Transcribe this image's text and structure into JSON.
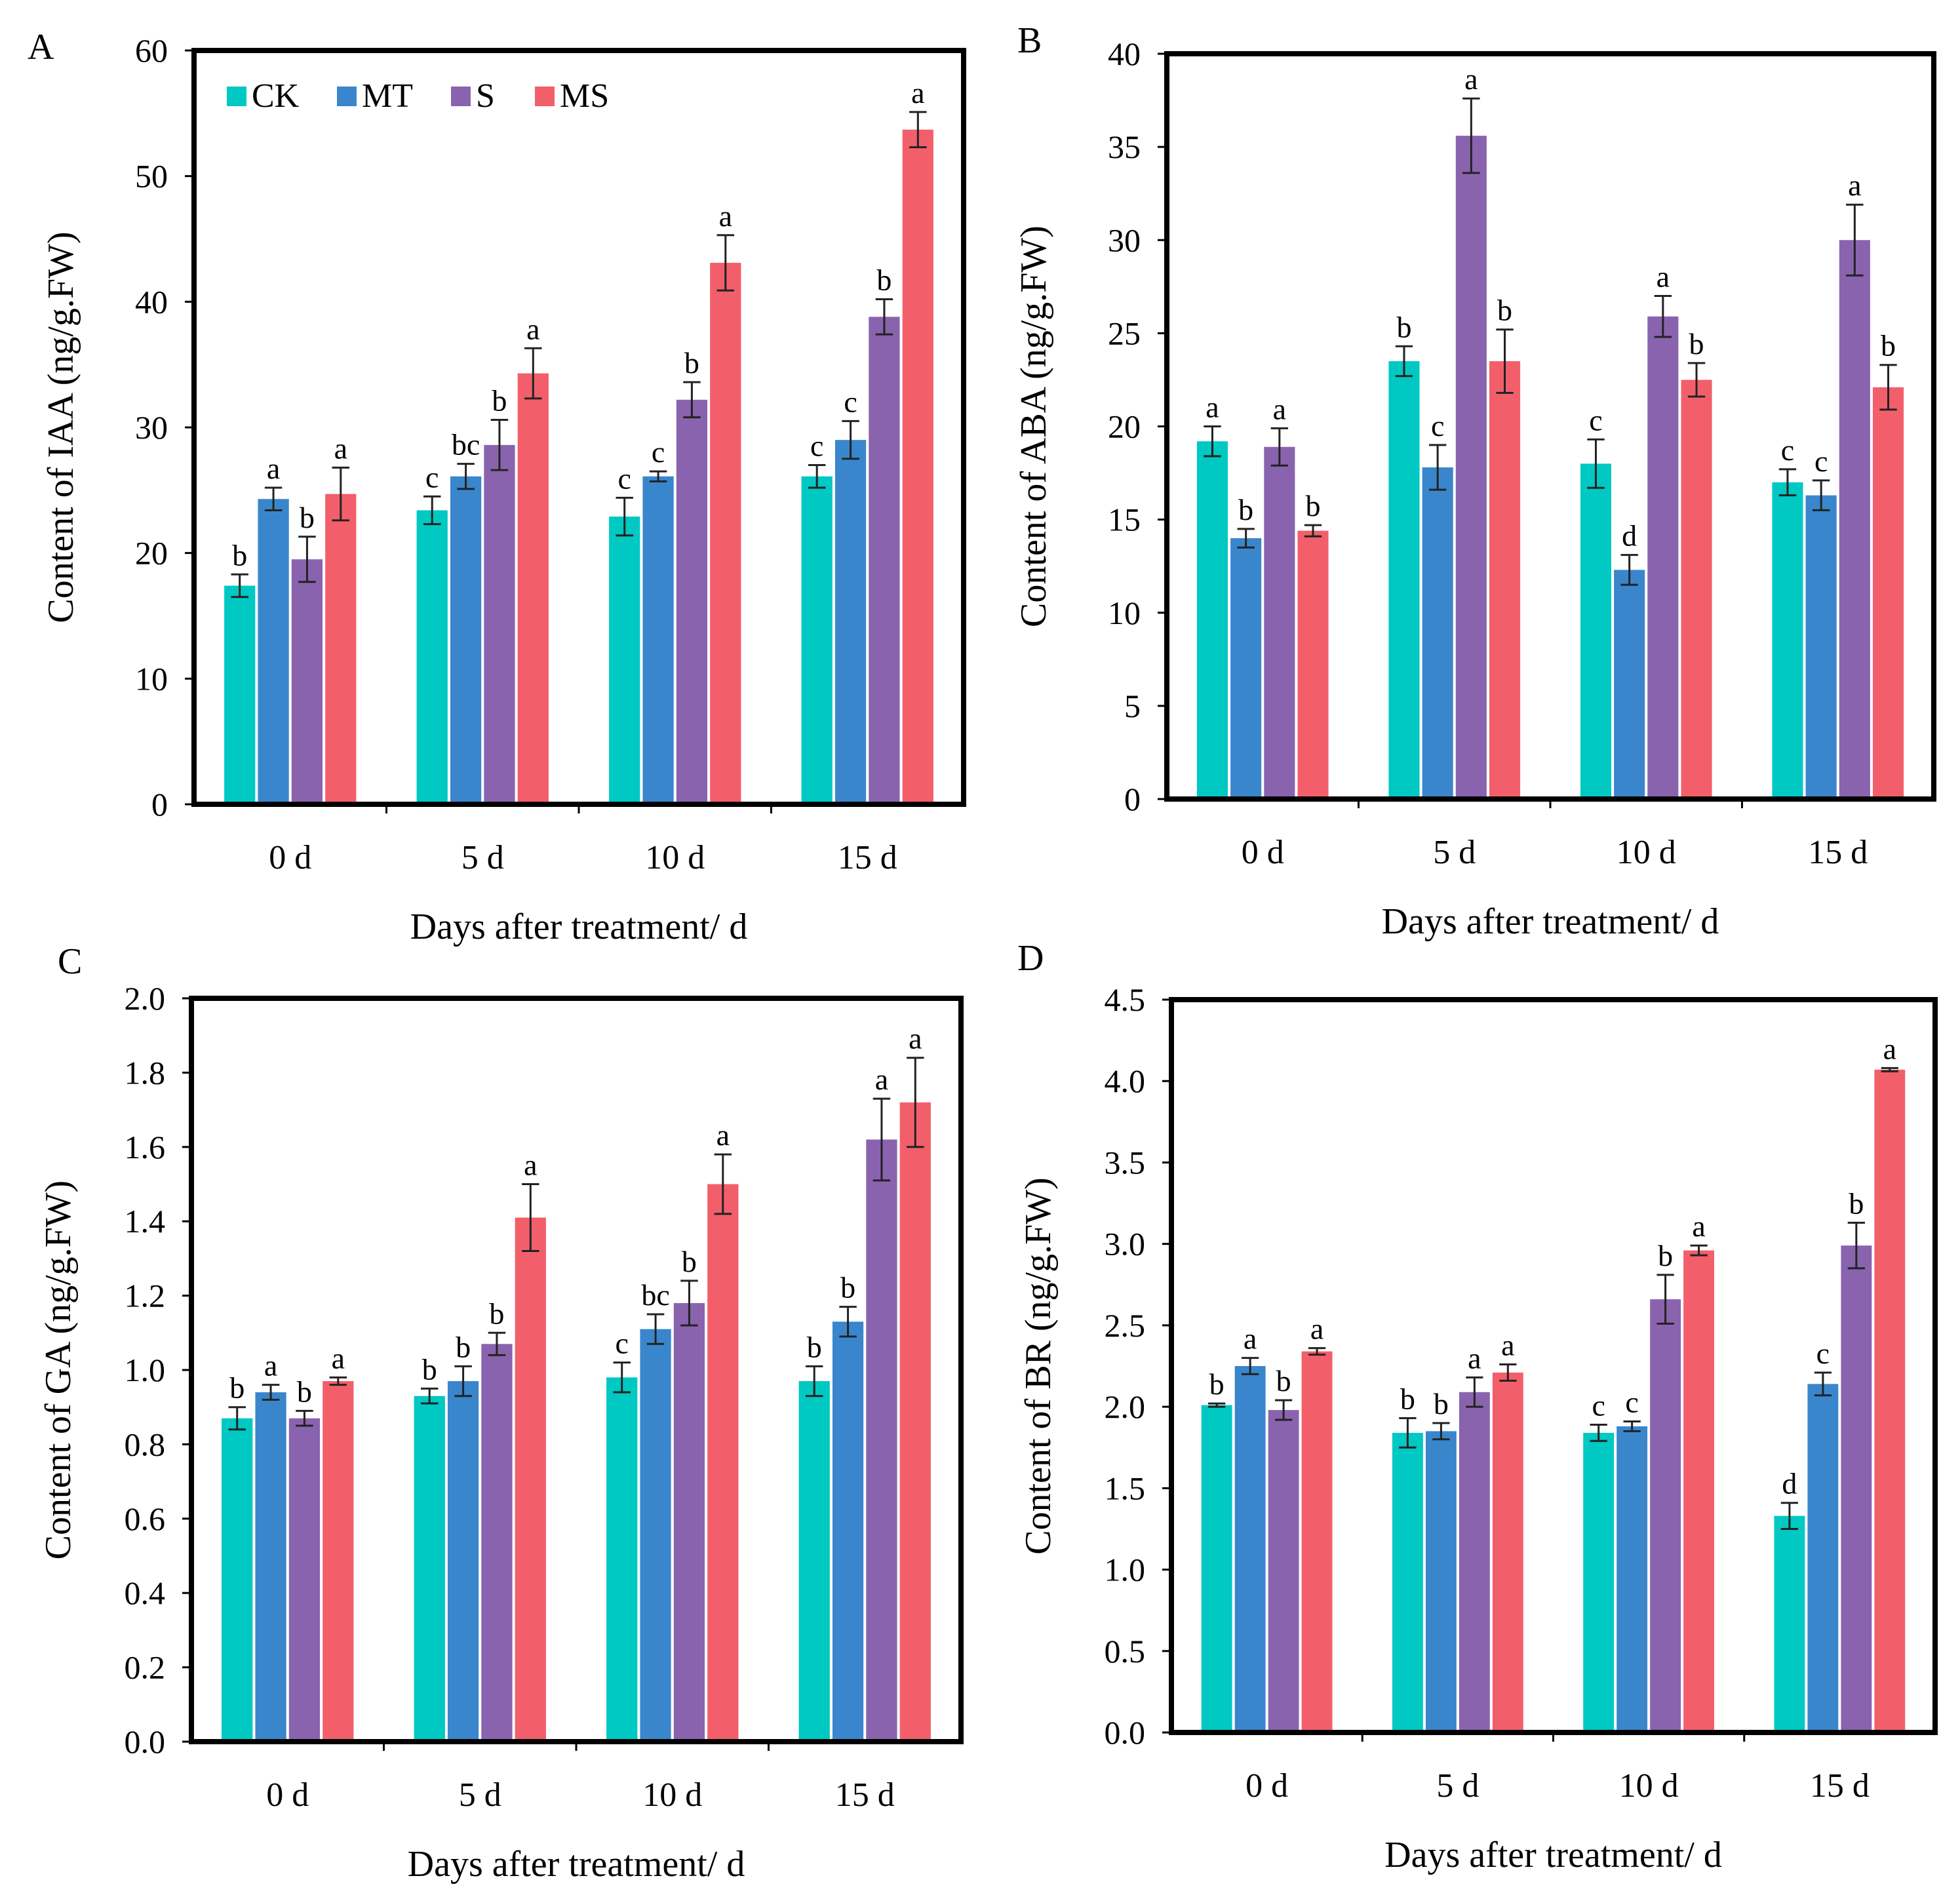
{
  "colors": {
    "CK": "#00C8C3",
    "MT": "#3A86CC",
    "S": "#8A63AE",
    "MS": "#F25F6B",
    "axis": "#000000",
    "error_bar": "#222222"
  },
  "legend": [
    {
      "key": "CK",
      "label": "CK"
    },
    {
      "key": "MT",
      "label": "MT"
    },
    {
      "key": "S",
      "label": "S"
    },
    {
      "key": "MS",
      "label": "MS"
    }
  ],
  "chart_data": [
    {
      "panel": "A",
      "type": "bar",
      "xlabel": "Days after treatment/ d",
      "ylabel": "Content of IAA (ng/g.FW)",
      "categories": [
        "0 d",
        "5 d",
        "10 d",
        "15 d"
      ],
      "ylim": [
        0,
        60
      ],
      "yticks": [
        0,
        10,
        20,
        30,
        40,
        50,
        60
      ],
      "tick_decimals": 0,
      "show_legend": true,
      "legend_position": "top-left",
      "series": [
        {
          "name": "CK",
          "values": [
            17.4,
            23.4,
            22.9,
            26.1
          ],
          "errors": [
            0.9,
            1.1,
            1.5,
            0.9
          ],
          "letters": [
            "b",
            "c",
            "c",
            "c"
          ]
        },
        {
          "name": "MT",
          "values": [
            24.3,
            26.1,
            26.1,
            29.0
          ],
          "errors": [
            0.9,
            1.0,
            0.4,
            1.5
          ],
          "letters": [
            "a",
            "bc",
            "c",
            "c"
          ]
        },
        {
          "name": "S",
          "values": [
            19.5,
            28.6,
            32.2,
            38.8
          ],
          "errors": [
            1.8,
            2.0,
            1.4,
            1.4
          ],
          "letters": [
            "b",
            "b",
            "b",
            "b"
          ]
        },
        {
          "name": "MS",
          "values": [
            24.7,
            34.3,
            43.1,
            53.7
          ],
          "errors": [
            2.1,
            2.0,
            2.2,
            1.4
          ],
          "letters": [
            "a",
            "a",
            "a",
            "a"
          ]
        }
      ]
    },
    {
      "panel": "B",
      "type": "bar",
      "xlabel": "Days after treatment/ d",
      "ylabel": "Content of ABA (ng/g.FW)",
      "categories": [
        "0 d",
        "5 d",
        "10 d",
        "15 d"
      ],
      "ylim": [
        0,
        40
      ],
      "yticks": [
        0,
        5,
        10,
        15,
        20,
        25,
        30,
        35,
        40
      ],
      "tick_decimals": 0,
      "show_legend": false,
      "series": [
        {
          "name": "CK",
          "values": [
            19.2,
            23.5,
            18.0,
            17.0
          ],
          "errors": [
            0.8,
            0.8,
            1.3,
            0.7
          ],
          "letters": [
            "a",
            "b",
            "c",
            "c"
          ]
        },
        {
          "name": "MT",
          "values": [
            14.0,
            17.8,
            12.3,
            16.3
          ],
          "errors": [
            0.5,
            1.2,
            0.8,
            0.8
          ],
          "letters": [
            "b",
            "c",
            "d",
            "c"
          ]
        },
        {
          "name": "S",
          "values": [
            18.9,
            35.6,
            25.9,
            30.0
          ],
          "errors": [
            1.0,
            2.0,
            1.1,
            1.9
          ],
          "letters": [
            "a",
            "a",
            "a",
            "a"
          ]
        },
        {
          "name": "MS",
          "values": [
            14.4,
            23.5,
            22.5,
            22.1
          ],
          "errors": [
            0.3,
            1.7,
            0.9,
            1.2
          ],
          "letters": [
            "b",
            "b",
            "b",
            "b"
          ]
        }
      ]
    },
    {
      "panel": "C",
      "type": "bar",
      "xlabel": "Days after treatment/ d",
      "ylabel": "Content of GA (ng/g.FW)",
      "categories": [
        "0 d",
        "5 d",
        "10 d",
        "15 d"
      ],
      "ylim": [
        0,
        2.0
      ],
      "yticks": [
        0.0,
        0.2,
        0.4,
        0.6,
        0.8,
        1.0,
        1.2,
        1.4,
        1.6,
        1.8,
        2.0
      ],
      "tick_decimals": 1,
      "show_legend": false,
      "series": [
        {
          "name": "CK",
          "values": [
            0.87,
            0.93,
            0.98,
            0.97
          ],
          "errors": [
            0.03,
            0.02,
            0.04,
            0.04
          ],
          "letters": [
            "b",
            "b",
            "c",
            "b"
          ]
        },
        {
          "name": "MT",
          "values": [
            0.94,
            0.97,
            1.11,
            1.13
          ],
          "errors": [
            0.02,
            0.04,
            0.04,
            0.04
          ],
          "letters": [
            "a",
            "b",
            "bc",
            "b"
          ]
        },
        {
          "name": "S",
          "values": [
            0.87,
            1.07,
            1.18,
            1.62
          ],
          "errors": [
            0.02,
            0.03,
            0.06,
            0.11
          ],
          "letters": [
            "b",
            "b",
            "b",
            "a"
          ]
        },
        {
          "name": "MS",
          "values": [
            0.97,
            1.41,
            1.5,
            1.72
          ],
          "errors": [
            0.01,
            0.09,
            0.08,
            0.12
          ],
          "letters": [
            "a",
            "a",
            "a",
            "a"
          ]
        }
      ]
    },
    {
      "panel": "D",
      "type": "bar",
      "xlabel": "Days after treatment/ d",
      "ylabel": "Content of BR (ng/g.FW)",
      "categories": [
        "0 d",
        "5 d",
        "10 d",
        "15 d"
      ],
      "ylim": [
        0,
        4.5
      ],
      "yticks": [
        0.0,
        0.5,
        1.0,
        1.5,
        2.0,
        2.5,
        3.0,
        3.5,
        4.0,
        4.5
      ],
      "tick_decimals": 1,
      "show_legend": false,
      "series": [
        {
          "name": "CK",
          "values": [
            2.01,
            1.84,
            1.84,
            1.33
          ],
          "errors": [
            0.01,
            0.09,
            0.05,
            0.08
          ],
          "letters": [
            "b",
            "b",
            "c",
            "d"
          ]
        },
        {
          "name": "MT",
          "values": [
            2.25,
            1.85,
            1.88,
            2.14
          ],
          "errors": [
            0.05,
            0.05,
            0.03,
            0.07
          ],
          "letters": [
            "a",
            "b",
            "c",
            "c"
          ]
        },
        {
          "name": "S",
          "values": [
            1.98,
            2.09,
            2.66,
            2.99
          ],
          "errors": [
            0.06,
            0.09,
            0.15,
            0.14
          ],
          "letters": [
            "b",
            "a",
            "b",
            "b"
          ]
        },
        {
          "name": "MS",
          "values": [
            2.34,
            2.21,
            2.96,
            4.07
          ],
          "errors": [
            0.02,
            0.05,
            0.03,
            0.01
          ],
          "letters": [
            "a",
            "a",
            "a",
            "a"
          ]
        }
      ]
    }
  ]
}
